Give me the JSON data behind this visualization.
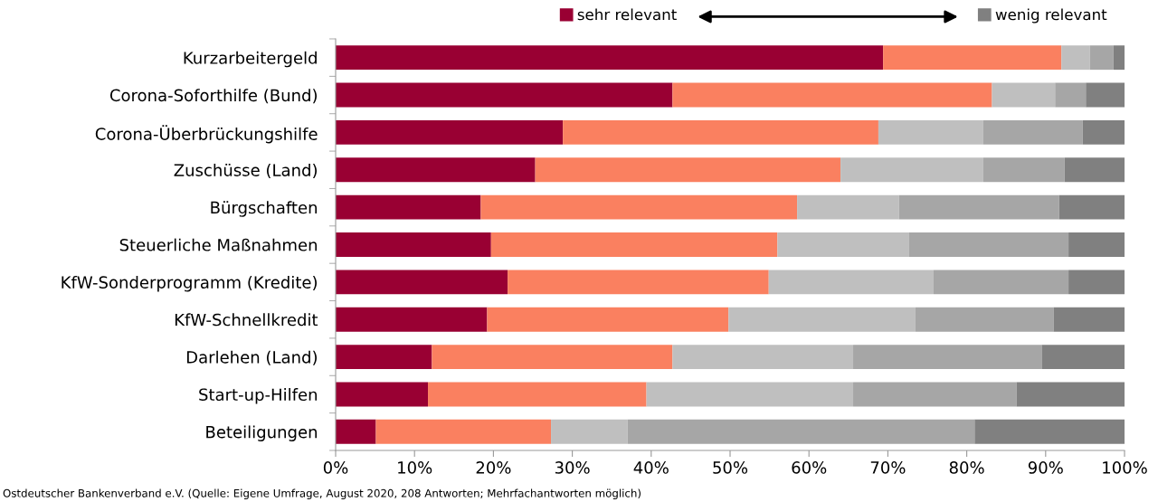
{
  "chart_data": {
    "type": "bar",
    "orientation": "horizontal",
    "stacked": true,
    "categories": [
      "Kurzarbeitergeld",
      "Corona-Soforthilfe (Bund)",
      "Corona-Überbrückungshilfe",
      "Zuschüsse (Land)",
      "Bürgschaften",
      "Steuerliche Maßnahmen",
      "KfW-Sonderprogramm (Kredite)",
      "KfW-Schnellkredit",
      "Darlehen (Land)",
      "Start-up-Hilfen",
      "Beteiligungen"
    ],
    "series": [
      {
        "name": "sehr relevant",
        "color": "#990033",
        "values": [
          69.4,
          42.7,
          28.8,
          25.3,
          18.4,
          19.7,
          21.8,
          19.2,
          12.2,
          11.7,
          5.1
        ]
      },
      {
        "color": "#fa8060",
        "values": [
          22.6,
          40.5,
          40.0,
          38.7,
          40.1,
          36.3,
          33.1,
          30.6,
          30.5,
          27.7,
          22.2
        ]
      },
      {
        "color": "#bfbfbf",
        "values": [
          3.6,
          8.0,
          13.3,
          18.1,
          12.9,
          16.7,
          20.9,
          23.7,
          22.9,
          26.2,
          9.7
        ]
      },
      {
        "color": "#a6a6a6",
        "values": [
          3.0,
          3.9,
          12.6,
          10.3,
          20.3,
          20.2,
          17.1,
          17.5,
          23.9,
          20.7,
          44.0
        ]
      },
      {
        "name": "wenig relevant",
        "color": "#808080",
        "values": [
          1.4,
          4.9,
          5.3,
          7.6,
          8.3,
          7.1,
          7.1,
          9.0,
          10.5,
          13.7,
          19.0
        ]
      }
    ],
    "xlim": [
      0,
      100
    ],
    "xticks": [
      {
        "value": 0,
        "label": "0%"
      },
      {
        "value": 10,
        "label": "10%"
      },
      {
        "value": 20,
        "label": "20%"
      },
      {
        "value": 30,
        "label": "30%"
      },
      {
        "value": 40,
        "label": "40%"
      },
      {
        "value": 50,
        "label": "50%"
      },
      {
        "value": 60,
        "label": "60%"
      },
      {
        "value": 70,
        "label": "70%"
      },
      {
        "value": 80,
        "label": "80%"
      },
      {
        "value": 90,
        "label": "90%"
      },
      {
        "value": 100,
        "label": "100%"
      }
    ],
    "grid": false,
    "legend": "top",
    "annotations": [
      "Ostdeutscher Bankenverband e.V. (Quelle: Eigene Umfrage, August 2020, 208 Antworten; Mehrfachantworten möglich)"
    ]
  }
}
